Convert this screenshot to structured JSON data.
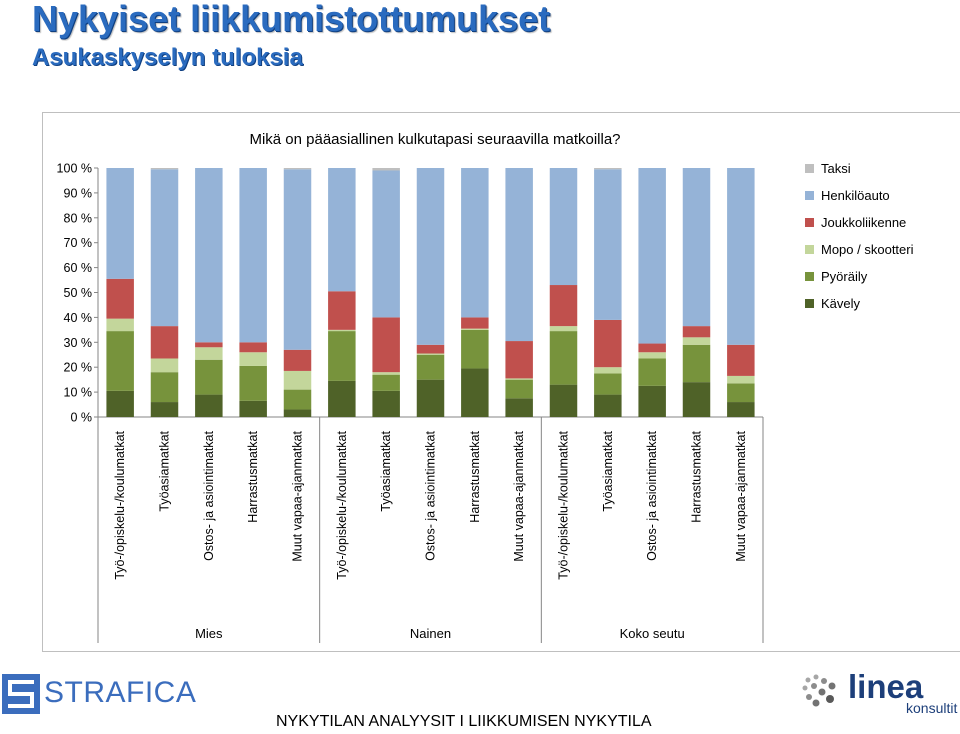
{
  "page": {
    "title": "Nykyiset liikkumistottumukset",
    "subtitle": "Asukaskyselyn tuloksia",
    "footer": "NYKYTILAN ANALYYSIT  I  LIIKKUMISEN NYKYTILA"
  },
  "logos": {
    "left": "STRAFICA",
    "right_main": "linea",
    "right_sub": "konsultit"
  },
  "chart_data": {
    "type": "bar",
    "stacked": true,
    "title": "Mikä on pääasiallinen kulkutapasi seuraavilla matkoilla?",
    "xlabel": "",
    "ylabel": "",
    "ylim": [
      0,
      100
    ],
    "yticks": [
      "0 %",
      "10 %",
      "20 %",
      "30 %",
      "40 %",
      "50 %",
      "60 %",
      "70 %",
      "80 %",
      "90 %",
      "100 %"
    ],
    "grid": false,
    "legend_position": "right",
    "groups": [
      {
        "label": "Mies",
        "span": [
          0,
          4
        ]
      },
      {
        "label": "Nainen",
        "span": [
          5,
          9
        ]
      },
      {
        "label": "Koko seutu",
        "span": [
          10,
          14
        ]
      }
    ],
    "categories": [
      "Työ-/opiskelu-/koulumatkat",
      "Työasiamatkat",
      "Ostos- ja asiointimatkat",
      "Harrastusmatkat",
      "Muut vapaa-ajanmatkat",
      "Työ-/opiskelu-/koulumatkat",
      "Työasiamatkat",
      "Ostos- ja asiointimatkat",
      "Harrastusmatkat",
      "Muut vapaa-ajanmatkat",
      "Työ-/opiskelu-/koulumatkat",
      "Työasiamatkat",
      "Ostos- ja asiointimatkat",
      "Harrastusmatkat",
      "Muut vapaa-ajanmatkat"
    ],
    "series": [
      {
        "name": "Kävely",
        "color": "#4f6228",
        "values": [
          10.5,
          6,
          9,
          6.5,
          3,
          14.5,
          10.5,
          15,
          19.5,
          7.5,
          13,
          9,
          12.5,
          14,
          6
        ]
      },
      {
        "name": "Pyöräily",
        "color": "#77933c",
        "values": [
          24,
          12,
          14,
          14,
          8,
          20,
          6.5,
          10,
          15.5,
          7.5,
          21.5,
          8.5,
          11,
          15,
          7.5
        ]
      },
      {
        "name": "Mopo / skootteri",
        "color": "#c3d69b",
        "values": [
          5,
          5.5,
          5,
          5.5,
          7.5,
          0.5,
          1,
          0.5,
          0.5,
          0.5,
          2,
          2.5,
          2.5,
          3,
          3
        ]
      },
      {
        "name": "Joukkoliikenne",
        "color": "#c0504d",
        "values": [
          16,
          13,
          2,
          4,
          8.5,
          15.5,
          22,
          3.5,
          4.5,
          15,
          16.5,
          19,
          3.5,
          4.5,
          12.5
        ]
      },
      {
        "name": "Henkilöauto",
        "color": "#95b3d7",
        "values": [
          44.5,
          63,
          70,
          70,
          72.5,
          49.5,
          59,
          71,
          60,
          69.5,
          47,
          60.5,
          70.5,
          63.5,
          71
        ]
      },
      {
        "name": "Taksi",
        "color": "#bfbfbf",
        "values": [
          0,
          0.5,
          0,
          0,
          0.5,
          0,
          1,
          0,
          0,
          0,
          0,
          0.5,
          0,
          0,
          0
        ]
      }
    ]
  }
}
